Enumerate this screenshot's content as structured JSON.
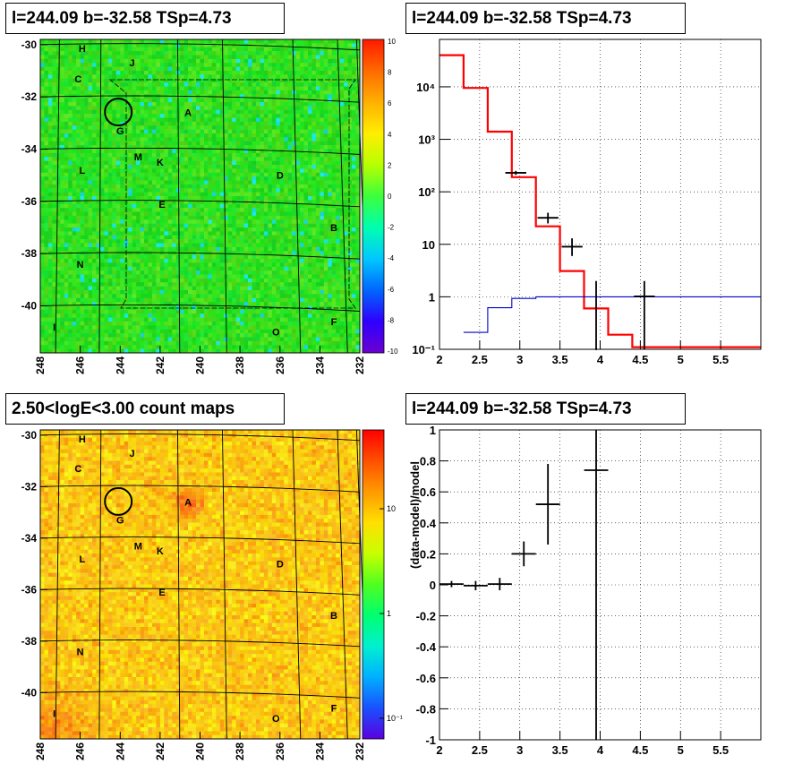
{
  "panels": {
    "tl_title": "l=244.09 b=-32.58 TSp=4.73",
    "tr_title": "l=244.09 b=-32.58 TSp=4.73",
    "bl_title": "2.50<logE<3.00 count maps",
    "br_title": "l=244.09 b=-32.58 TSp=4.73"
  },
  "maps": {
    "x_ticks": [
      "248",
      "246",
      "244",
      "242",
      "240",
      "238",
      "236",
      "234",
      "232"
    ],
    "y_ticks": [
      "-30",
      "-32",
      "-34",
      "-36",
      "-38",
      "-40"
    ],
    "sources": [
      {
        "label": "H",
        "l": 245.9,
        "b": -30.15
      },
      {
        "label": "J",
        "l": 243.4,
        "b": -30.7
      },
      {
        "label": "C",
        "l": 246.1,
        "b": -31.3
      },
      {
        "label": "A",
        "l": 240.6,
        "b": -32.6
      },
      {
        "label": "G",
        "l": 244.0,
        "b": -33.3
      },
      {
        "label": "M",
        "l": 243.1,
        "b": -34.3
      },
      {
        "label": "K",
        "l": 242.0,
        "b": -34.5
      },
      {
        "label": "L",
        "l": 245.9,
        "b": -34.8
      },
      {
        "label": "D",
        "l": 236.0,
        "b": -35.0
      },
      {
        "label": "E",
        "l": 241.9,
        "b": -36.1
      },
      {
        "label": "B",
        "l": 233.3,
        "b": -37.0
      },
      {
        "label": "N",
        "l": 246.0,
        "b": -38.4
      },
      {
        "label": "I",
        "l": 247.3,
        "b": -40.8
      },
      {
        "label": "O",
        "l": 236.2,
        "b": -41.0
      },
      {
        "label": "F",
        "l": 233.3,
        "b": -40.6
      }
    ],
    "roi": {
      "l": 244.09,
      "b": -32.58
    },
    "tl_colorbar": [
      "10",
      "8",
      "6",
      "4",
      "2",
      "0",
      "-2",
      "-4",
      "-6",
      "-8",
      "-10"
    ],
    "bl_colorbar": [
      "10",
      "1",
      "10⁻¹"
    ]
  },
  "chart_data": [
    {
      "type": "line",
      "panel": "spectrum",
      "title": "l=244.09 b=-32.58 TSp=4.73",
      "xlabel": "",
      "ylabel": "",
      "xlim": [
        2,
        6
      ],
      "ylim": [
        0.1,
        80000
      ],
      "yscale": "log",
      "grid": true,
      "x_ticks": [
        "2",
        "2.5",
        "3",
        "3.5",
        "4",
        "4.5",
        "5",
        "5.5"
      ],
      "y_ticks": [
        "10⁻¹",
        "1",
        "10",
        "10²",
        "10³",
        "10⁴"
      ],
      "series": [
        {
          "style": "step-red",
          "bin_edges": [
            2.0,
            2.3,
            2.6,
            2.9,
            3.2,
            3.5,
            3.8,
            4.1,
            4.4,
            6.0
          ],
          "values": [
            40000,
            9500,
            1400,
            190,
            22,
            3.1,
            0.6,
            0.19,
            0.11
          ]
        },
        {
          "style": "step-blue",
          "bin_edges": [
            2.3,
            2.6,
            2.9,
            3.2,
            3.5,
            3.8,
            4.1,
            4.4,
            6.0
          ],
          "values": [
            0.21,
            0.62,
            0.93,
            1.0,
            1.0,
            1.0,
            1.0,
            1.0
          ]
        },
        {
          "style": "points",
          "x": [
            2.95,
            3.35,
            3.65,
            3.95,
            4.55
          ],
          "y": [
            230,
            32,
            9,
            0.1,
            1.02
          ],
          "xerr": [
            0.13,
            0.13,
            0.13,
            0.01,
            0.13
          ],
          "ylo": [
            210,
            25,
            6,
            0.1,
            0.1
          ],
          "yhi": [
            250,
            40,
            13,
            2.0,
            2.0
          ]
        }
      ]
    },
    {
      "type": "scatter",
      "panel": "residual",
      "title": "l=244.09 b=-32.58 TSp=4.73",
      "xlabel": "",
      "ylabel": "(data-model)/model",
      "xlim": [
        2,
        6
      ],
      "ylim": [
        -1,
        1
      ],
      "grid": true,
      "x_ticks": [
        "2",
        "2.5",
        "3",
        "3.5",
        "4",
        "4.5",
        "5",
        "5.5"
      ],
      "y_ticks": [
        "1",
        "0.8",
        "0.6",
        "0.4",
        "0.2",
        "0",
        "-0.2",
        "-0.4",
        "-0.6",
        "-0.8",
        "-1"
      ],
      "series": [
        {
          "x": [
            2.15,
            2.45,
            2.75,
            3.05,
            3.35,
            3.95
          ],
          "y": [
            0.005,
            -0.005,
            0.005,
            0.2,
            0.52,
            0.74
          ],
          "xerr": [
            0.15,
            0.15,
            0.15,
            0.15,
            0.15,
            0.15
          ],
          "yerr": [
            0.02,
            0.03,
            0.04,
            0.08,
            0.26,
            1.8
          ]
        }
      ]
    }
  ]
}
